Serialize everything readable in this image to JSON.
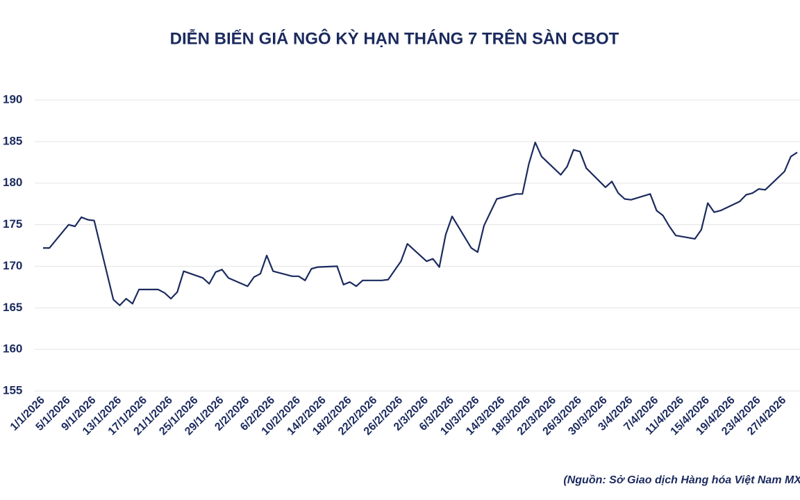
{
  "chart_data": {
    "type": "line",
    "title": "DIỄN BIẾN GIÁ NGÔ KỲ HẠN THÁNG 7 TRÊN SÀN CBOT",
    "source": "(Nguồn: Sở Giao dịch Hàng hóa Việt Nam MXV)",
    "x": [
      "1/1/2026",
      "2/1/2026",
      "5/1/2026",
      "6/1/2026",
      "7/1/2026",
      "8/1/2026",
      "9/1/2026",
      "12/1/2026",
      "13/1/2026",
      "14/1/2026",
      "15/1/2026",
      "16/1/2026",
      "19/1/2026",
      "20/1/2026",
      "21/1/2026",
      "22/1/2026",
      "23/1/2026",
      "26/1/2026",
      "27/1/2026",
      "28/1/2026",
      "29/1/2026",
      "30/1/2026",
      "2/2/2026",
      "3/2/2026",
      "4/2/2026",
      "5/2/2026",
      "6/2/2026",
      "9/2/2026",
      "10/2/2026",
      "11/2/2026",
      "12/2/2026",
      "13/2/2026",
      "16/2/2026",
      "17/2/2026",
      "18/2/2026",
      "19/2/2026",
      "20/2/2026",
      "23/2/2026",
      "24/2/2026",
      "25/2/2026",
      "26/2/2026",
      "27/2/2026",
      "2/3/2026",
      "3/3/2026",
      "4/3/2026",
      "5/3/2026",
      "6/3/2026",
      "9/3/2026",
      "10/3/2026",
      "11/3/2026",
      "12/3/2026",
      "13/3/2026",
      "16/3/2026",
      "17/3/2026",
      "18/3/2026",
      "19/3/2026",
      "20/3/2026",
      "23/3/2026",
      "24/3/2026",
      "25/3/2026",
      "26/3/2026",
      "27/3/2026",
      "30/3/2026",
      "31/3/2026",
      "1/4/2026",
      "2/4/2026",
      "3/4/2026",
      "6/4/2026",
      "7/4/2026",
      "8/4/2026",
      "9/4/2026",
      "10/4/2026",
      "13/4/2026",
      "14/4/2026",
      "15/4/2026",
      "16/4/2026",
      "17/4/2026",
      "20/4/2026",
      "21/4/2026",
      "22/4/2026",
      "23/4/2026",
      "24/4/2026",
      "27/4/2026",
      "28/4/2026",
      "29/4/2026"
    ],
    "series": [
      {
        "color": "#1b2a5e",
        "values": [
          172.2,
          172.2,
          175.0,
          174.8,
          175.9,
          175.6,
          175.5,
          166.0,
          165.3,
          166.1,
          165.5,
          167.2,
          167.2,
          166.8,
          166.1,
          166.9,
          169.4,
          168.6,
          167.9,
          169.3,
          169.6,
          168.6,
          167.6,
          168.7,
          169.1,
          171.3,
          169.4,
          168.8,
          168.8,
          168.3,
          169.7,
          169.9,
          170.0,
          167.8,
          168.1,
          167.6,
          168.3,
          168.3,
          168.4,
          169.5,
          170.6,
          172.7,
          170.6,
          170.9,
          169.9,
          173.8,
          176.0,
          172.2,
          171.7,
          174.9,
          176.5,
          178.1,
          178.7,
          178.7,
          182.3,
          184.9,
          183.2,
          181.0,
          182.0,
          184.0,
          183.8,
          181.8,
          179.5,
          180.2,
          178.8,
          178.1,
          178.0,
          178.7,
          176.7,
          176.1,
          174.8,
          173.7,
          173.3,
          174.4,
          177.6,
          176.5,
          176.7,
          177.8,
          178.6,
          178.8,
          179.3,
          179.2,
          181.4,
          183.2,
          183.7
        ]
      }
    ],
    "xlim": [
      "1/1/2026",
      "29/4/2026"
    ],
    "xticks": [
      "1/1/2026",
      "5/1/2026",
      "9/1/2026",
      "13/1/2026",
      "17/1/2026",
      "21/1/2026",
      "25/1/2026",
      "29/1/2026",
      "2/2/2026",
      "6/2/2026",
      "10/2/2026",
      "14/2/2026",
      "18/2/2026",
      "22/2/2026",
      "26/2/2026",
      "2/3/2026",
      "6/3/2026",
      "10/3/2026",
      "14/3/2026",
      "18/3/2026",
      "22/3/2026",
      "26/3/2026",
      "30/3/2026",
      "3/4/2026",
      "7/4/2026",
      "11/4/2026",
      "15/4/2026",
      "19/4/2026",
      "23/4/2026",
      "27/4/2026"
    ],
    "ylim": [
      155,
      190
    ],
    "yticks": [
      155,
      160,
      165,
      170,
      175,
      180,
      185,
      190
    ],
    "grid": true
  }
}
